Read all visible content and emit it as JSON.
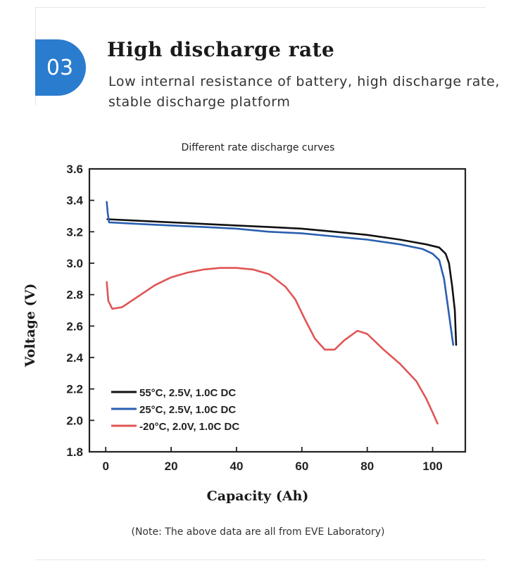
{
  "section": {
    "number": "03",
    "title": "High discharge rate",
    "description": "Low internal resistance of battery, high discharge rate, stable discharge platform"
  },
  "note": "(Note: The above data are all from EVE Laboratory)",
  "chart_data": {
    "type": "line",
    "title": "Different rate discharge curves",
    "xlabel": "Capacity (Ah)",
    "ylabel": "Voltage (V)",
    "xlim": [
      -5,
      110
    ],
    "ylim": [
      1.8,
      3.6
    ],
    "xticks": [
      0,
      20,
      40,
      60,
      80,
      100
    ],
    "yticks": [
      1.8,
      2.0,
      2.2,
      2.4,
      2.6,
      2.8,
      3.0,
      3.2,
      3.4,
      3.6
    ],
    "legend_position": "bottom-left",
    "grid": false,
    "series": [
      {
        "name": "55°C, 2.5V, 1.0C DC",
        "color": "#111111",
        "points": [
          [
            0.5,
            3.28
          ],
          [
            10,
            3.27
          ],
          [
            20,
            3.26
          ],
          [
            30,
            3.25
          ],
          [
            40,
            3.24
          ],
          [
            50,
            3.23
          ],
          [
            60,
            3.22
          ],
          [
            70,
            3.2
          ],
          [
            80,
            3.18
          ],
          [
            90,
            3.15
          ],
          [
            98,
            3.12
          ],
          [
            102,
            3.1
          ],
          [
            104,
            3.06
          ],
          [
            105,
            3.0
          ],
          [
            106,
            2.85
          ],
          [
            106.8,
            2.7
          ],
          [
            107.2,
            2.48
          ]
        ]
      },
      {
        "name": "25°C, 2.5V, 1.0C DC",
        "color": "#2a5fb0",
        "points": [
          [
            0.3,
            3.39
          ],
          [
            0.6,
            3.32
          ],
          [
            1,
            3.26
          ],
          [
            10,
            3.25
          ],
          [
            20,
            3.24
          ],
          [
            30,
            3.23
          ],
          [
            40,
            3.22
          ],
          [
            50,
            3.2
          ],
          [
            60,
            3.19
          ],
          [
            70,
            3.17
          ],
          [
            80,
            3.15
          ],
          [
            90,
            3.12
          ],
          [
            97,
            3.09
          ],
          [
            100,
            3.06
          ],
          [
            102,
            3.02
          ],
          [
            103.5,
            2.9
          ],
          [
            104.5,
            2.75
          ],
          [
            105.5,
            2.6
          ],
          [
            106.3,
            2.48
          ]
        ]
      },
      {
        "name": "-20°C, 2.0V, 1.0C DC",
        "color": "#e05555",
        "points": [
          [
            0.3,
            2.88
          ],
          [
            0.8,
            2.76
          ],
          [
            2,
            2.71
          ],
          [
            5,
            2.72
          ],
          [
            10,
            2.79
          ],
          [
            15,
            2.86
          ],
          [
            20,
            2.91
          ],
          [
            25,
            2.94
          ],
          [
            30,
            2.96
          ],
          [
            35,
            2.97
          ],
          [
            40,
            2.97
          ],
          [
            45,
            2.96
          ],
          [
            50,
            2.93
          ],
          [
            55,
            2.85
          ],
          [
            58,
            2.77
          ],
          [
            61,
            2.64
          ],
          [
            64,
            2.52
          ],
          [
            67,
            2.45
          ],
          [
            70,
            2.45
          ],
          [
            73,
            2.51
          ],
          [
            77,
            2.57
          ],
          [
            80,
            2.55
          ],
          [
            85,
            2.45
          ],
          [
            90,
            2.36
          ],
          [
            95,
            2.25
          ],
          [
            98,
            2.14
          ],
          [
            100,
            2.05
          ],
          [
            101.5,
            1.98
          ]
        ]
      }
    ]
  }
}
